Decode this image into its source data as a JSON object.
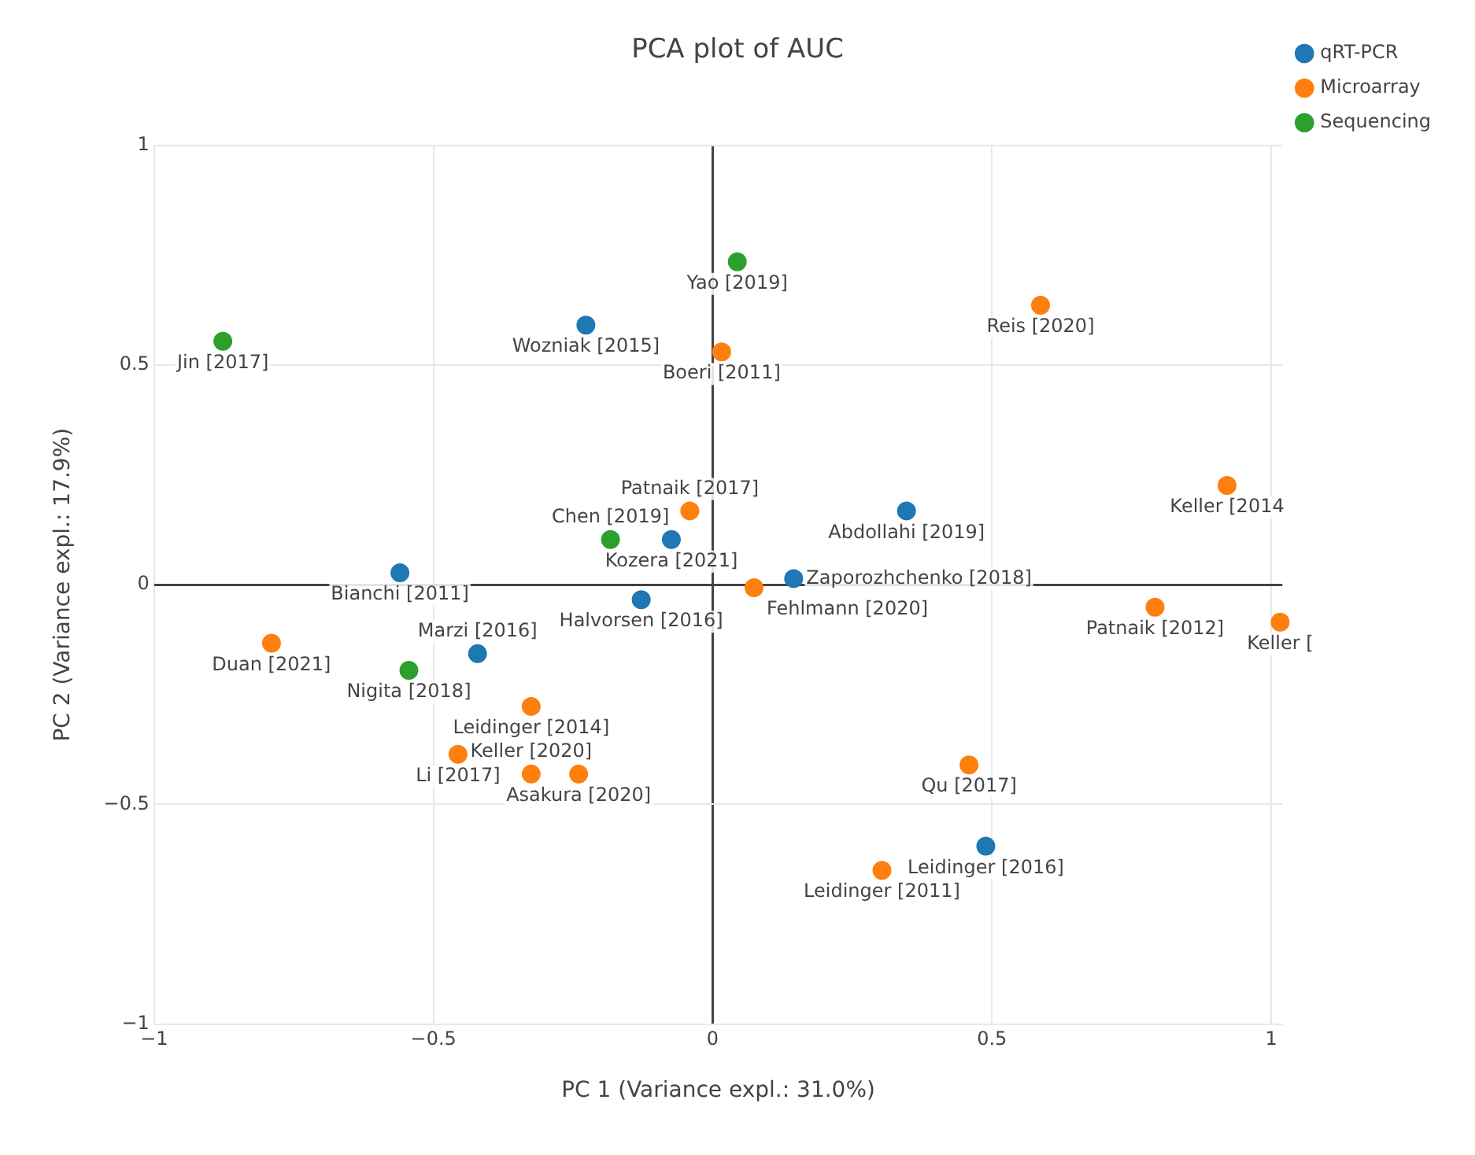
{
  "chart_data": {
    "type": "scatter",
    "title": "PCA plot of AUC",
    "xlabel": "PC 1 (Variance expl.: 31.0%)",
    "ylabel": "PC 2 (Variance expl.: 17.9%)",
    "series": [
      {
        "name": "qRT-PCR",
        "color": "#1f77b4",
        "x": [
          -0.227,
          -0.074,
          -0.56,
          -0.128,
          0.145,
          0.347,
          -0.421,
          0.489
        ],
        "values": [
          0.591,
          0.103,
          0.027,
          -0.034,
          0.014,
          0.168,
          -0.157,
          -0.595
        ]
      },
      {
        "name": "Microarray",
        "color": "#ff7f0e",
        "x": [
          0.587,
          0.016,
          -0.041,
          0.074,
          0.921,
          0.792,
          1.016,
          -0.79,
          -0.325,
          -0.456,
          -0.325,
          -0.24,
          0.459,
          0.303
        ],
        "values": [
          0.636,
          0.53,
          0.168,
          -0.007,
          0.226,
          -0.051,
          -0.085,
          -0.133,
          -0.277,
          -0.386,
          -0.431,
          -0.431,
          -0.41,
          -0.65
        ]
      },
      {
        "name": "Sequencing",
        "color": "#2ca02c",
        "x": [
          -0.877,
          0.044,
          -0.183,
          -0.544
        ],
        "values": [
          0.554,
          0.735,
          0.103,
          -0.195
        ]
      }
    ],
    "annotations": [
      {
        "text": "Wozniak [2015]",
        "x": -0.227,
        "y": 0.591
      },
      {
        "text": "Kozera [2021]",
        "x": -0.074,
        "y": 0.103
      },
      {
        "text": "Bianchi [2011]",
        "x": -0.56,
        "y": 0.027
      },
      {
        "text": "Halvorsen [2016]",
        "x": -0.128,
        "y": -0.034
      },
      {
        "text": "Zaporozhchenko [2018]",
        "x": 0.145,
        "y": 0.014
      },
      {
        "text": "Abdollahi [2019]",
        "x": 0.347,
        "y": 0.168
      },
      {
        "text": "Marzi [2016]",
        "x": -0.421,
        "y": -0.157
      },
      {
        "text": "Leidinger [2016]",
        "x": 0.489,
        "y": -0.595
      },
      {
        "text": "Reis [2020]",
        "x": 0.587,
        "y": 0.636
      },
      {
        "text": "Boeri [2011]",
        "x": 0.016,
        "y": 0.53
      },
      {
        "text": "Patnaik [2017]",
        "x": -0.041,
        "y": 0.168
      },
      {
        "text": "Fehlmann [2020]",
        "x": 0.074,
        "y": -0.007
      },
      {
        "text": "Keller [2014",
        "x": 0.921,
        "y": 0.226
      },
      {
        "text": "Patnaik [2012]",
        "x": 0.792,
        "y": -0.051
      },
      {
        "text": "Keller [",
        "x": 1.016,
        "y": -0.085
      },
      {
        "text": "Duan [2021]",
        "x": -0.79,
        "y": -0.133
      },
      {
        "text": "Leidinger [2014]",
        "x": -0.325,
        "y": -0.277
      },
      {
        "text": "Li [2017]",
        "x": -0.456,
        "y": -0.386
      },
      {
        "text": "Keller [2020]",
        "x": -0.325,
        "y": -0.431
      },
      {
        "text": "Asakura [2020]",
        "x": -0.24,
        "y": -0.431
      },
      {
        "text": "Qu [2017]",
        "x": 0.459,
        "y": -0.41
      },
      {
        "text": "Leidinger [2011]",
        "x": 0.303,
        "y": -0.65
      },
      {
        "text": "Jin [2017]",
        "x": -0.877,
        "y": 0.554
      },
      {
        "text": "Yao [2019]",
        "x": 0.044,
        "y": 0.735
      },
      {
        "text": "Chen [2019]",
        "x": -0.183,
        "y": 0.103
      },
      {
        "text": "Nigita [2018]",
        "x": -0.544,
        "y": -0.195
      }
    ],
    "xlim": [
      -1,
      1.02
    ],
    "ylim": [
      -1,
      1
    ],
    "xticks": [
      {
        "value": -1,
        "label": "−1"
      },
      {
        "value": -0.5,
        "label": "−0.5"
      },
      0,
      0.5,
      1
    ],
    "yticks": [
      {
        "value": -1,
        "label": "−1"
      },
      {
        "value": -0.5,
        "label": "−0.5"
      },
      0,
      0.5,
      1
    ],
    "grid": true,
    "legend": "top right",
    "marker": "circle"
  }
}
